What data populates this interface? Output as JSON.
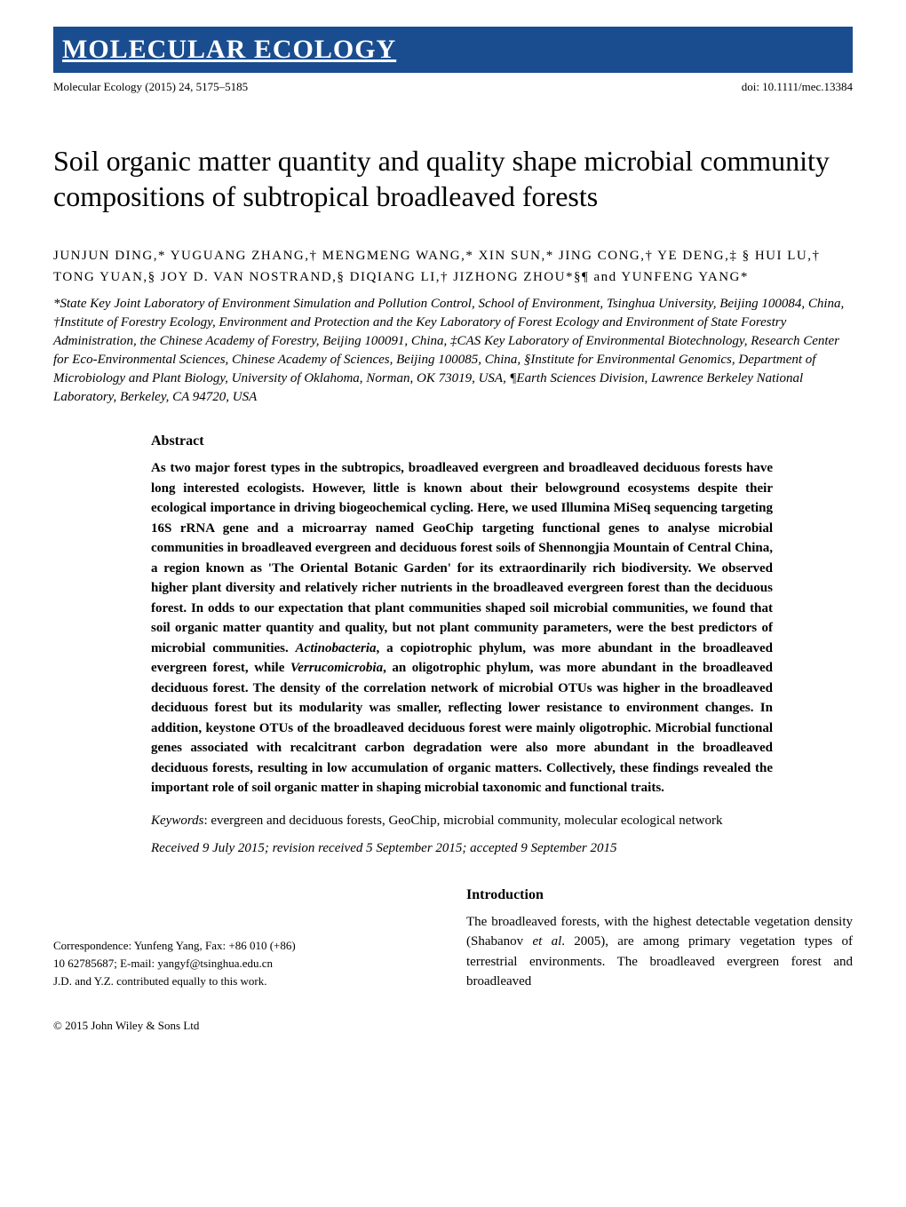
{
  "journal": {
    "banner_name": "MOLECULAR ECOLOGY",
    "citation": "Molecular Ecology (2015) 24, 5175–5185",
    "doi": "doi: 10.1111/mec.13384",
    "banner_bg_color": "#1a4d8f",
    "banner_text_color": "#ffffff"
  },
  "article": {
    "title": "Soil organic matter quantity and quality shape microbial community compositions of subtropical broadleaved forests",
    "authors": "JUNJUN DING,* YUGUANG ZHANG,† MENGMENG WANG,* XIN SUN,* JING CONG,† YE DENG,‡ § HUI LU,† TONG YUAN,§ JOY D. VAN NOSTRAND,§ DIQIANG LI,† JIZHONG ZHOU*§¶ and YUNFENG YANG*",
    "affiliations": "*State Key Joint Laboratory of Environment Simulation and Pollution Control, School of Environment, Tsinghua University, Beijing 100084, China, †Institute of Forestry Ecology, Environment and Protection and the Key Laboratory of Forest Ecology and Environment of State Forestry Administration, the Chinese Academy of Forestry, Beijing 100091, China, ‡CAS Key Laboratory of Environmental Biotechnology, Research Center for Eco-Environmental Sciences, Chinese Academy of Sciences, Beijing 100085, China, §Institute for Environmental Genomics, Department of Microbiology and Plant Biology, University of Oklahoma, Norman, OK 73019, USA, ¶Earth Sciences Division, Lawrence Berkeley National Laboratory, Berkeley, CA 94720, USA"
  },
  "abstract": {
    "heading": "Abstract",
    "text": "As two major forest types in the subtropics, broadleaved evergreen and broadleaved deciduous forests have long interested ecologists. However, little is known about their belowground ecosystems despite their ecological importance in driving biogeochemical cycling. Here, we used Illumina MiSeq sequencing targeting 16S rRNA gene and a microarray named GeoChip targeting functional genes to analyse microbial communities in broadleaved evergreen and deciduous forest soils of Shennongjia Mountain of Central China, a region known as 'The Oriental Botanic Garden' for its extraordinarily rich biodiversity. We observed higher plant diversity and relatively richer nutrients in the broadleaved evergreen forest than the deciduous forest. In odds to our expectation that plant communities shaped soil microbial communities, we found that soil organic matter quantity and quality, but not plant community parameters, were the best predictors of microbial communities. Actinobacteria, a copiotrophic phylum, was more abundant in the broadleaved evergreen forest, while Verrucomicrobia, an oligotrophic phylum, was more abundant in the broadleaved deciduous forest. The density of the correlation network of microbial OTUs was higher in the broadleaved deciduous forest but its modularity was smaller, reflecting lower resistance to environment changes. In addition, keystone OTUs of the broadleaved deciduous forest were mainly oligotrophic. Microbial functional genes associated with recalcitrant carbon degradation were also more abundant in the broadleaved deciduous forests, resulting in low accumulation of organic matters. Collectively, these findings revealed the important role of soil organic matter in shaping microbial taxonomic and functional traits.",
    "keywords_label": "Keywords",
    "keywords": ": evergreen and deciduous forests, GeoChip, microbial community, molecular ecological network",
    "dates": "Received 9 July 2015; revision received 5 September 2015; accepted 9 September 2015"
  },
  "introduction": {
    "heading": "Introduction",
    "text": "The broadleaved forests, with the highest detectable vegetation density (Shabanov et al. 2005), are among primary vegetation types of terrestrial environments. The broadleaved evergreen forest and broadleaved"
  },
  "correspondence": {
    "line1": "Correspondence: Yunfeng Yang, Fax: +86 010 (+86)",
    "line2": "10 62785687; E-mail: yangyf@tsinghua.edu.cn",
    "line3": "J.D. and Y.Z. contributed equally to this work."
  },
  "copyright": "© 2015 John Wiley & Sons Ltd"
}
